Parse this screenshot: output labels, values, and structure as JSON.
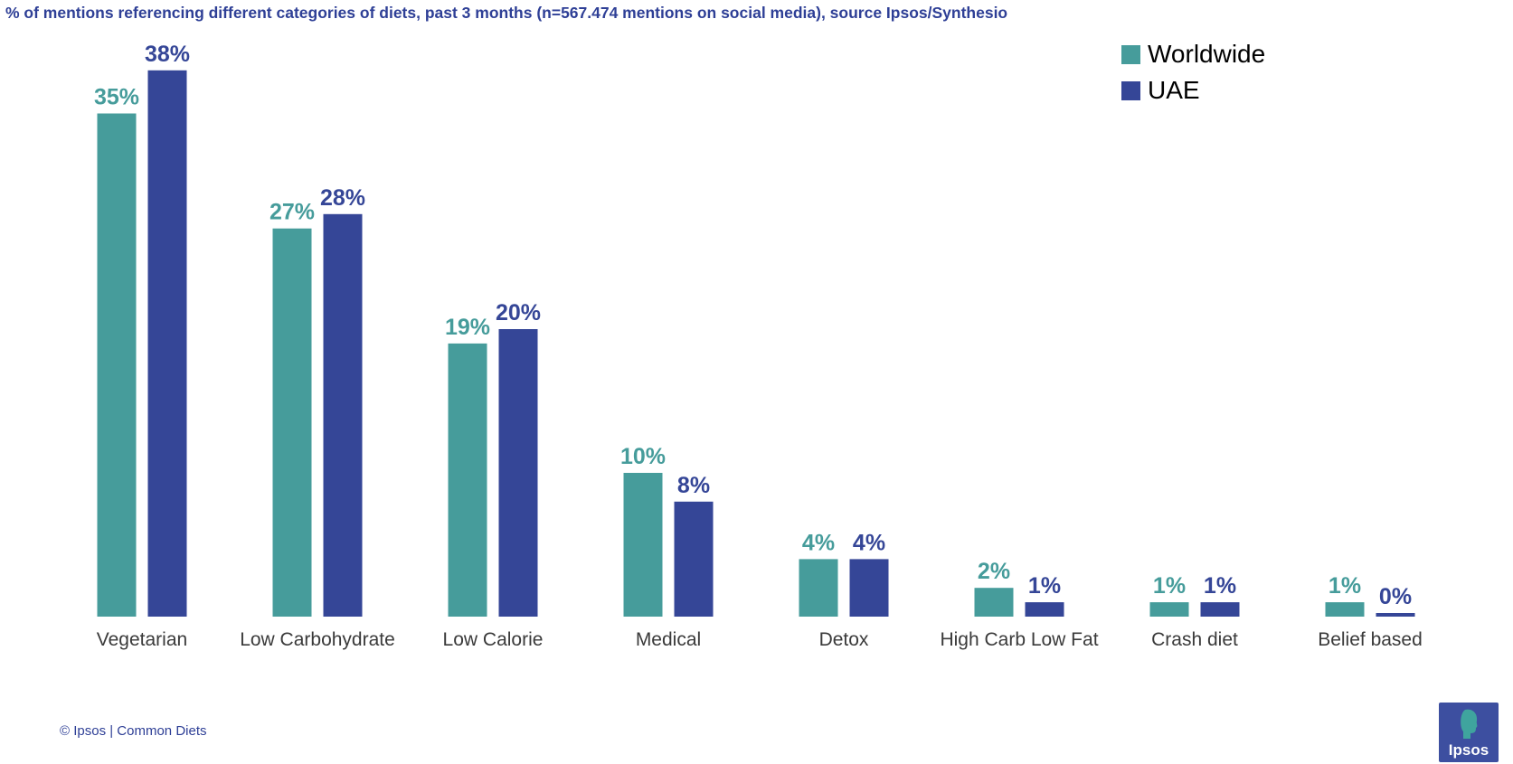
{
  "title": "% of mentions referencing different categories of diets, past 3 months (n=567.474 mentions on social media), source Ipsos/Synthesio",
  "colors": {
    "worldwide": "#469c9b",
    "uae": "#354697",
    "title": "#2e3f96",
    "footer": "#2e3f96",
    "logo_bg": "#3d4fa0",
    "logo_accent": "#3fa49e"
  },
  "chart_data": {
    "type": "bar",
    "title": "% of mentions referencing different categories of diets, past 3 months (n=567.474 mentions on social media), source Ipsos/Synthesio",
    "xlabel": "",
    "ylabel": "",
    "ylim": [
      0,
      40
    ],
    "grid": false,
    "legend_position": "top-right",
    "categories": [
      "Vegetarian",
      "Low Carbohydrate",
      "Low Calorie",
      "Medical",
      "Detox",
      "High Carb Low Fat",
      "Crash diet",
      "Belief based"
    ],
    "series": [
      {
        "name": "Worldwide",
        "values": [
          35,
          27,
          19,
          10,
          4,
          2,
          1,
          1
        ],
        "labels": [
          "35%",
          "27%",
          "19%",
          "10%",
          "4%",
          "2%",
          "1%",
          "1%"
        ]
      },
      {
        "name": "UAE",
        "values": [
          38,
          28,
          20,
          8,
          4,
          1,
          1,
          0
        ],
        "labels": [
          "38%",
          "28%",
          "20%",
          "8%",
          "4%",
          "1%",
          "1%",
          "0%"
        ]
      }
    ]
  },
  "footer": "© Ipsos | Common Diets",
  "logo": {
    "text": "Ipsos"
  }
}
